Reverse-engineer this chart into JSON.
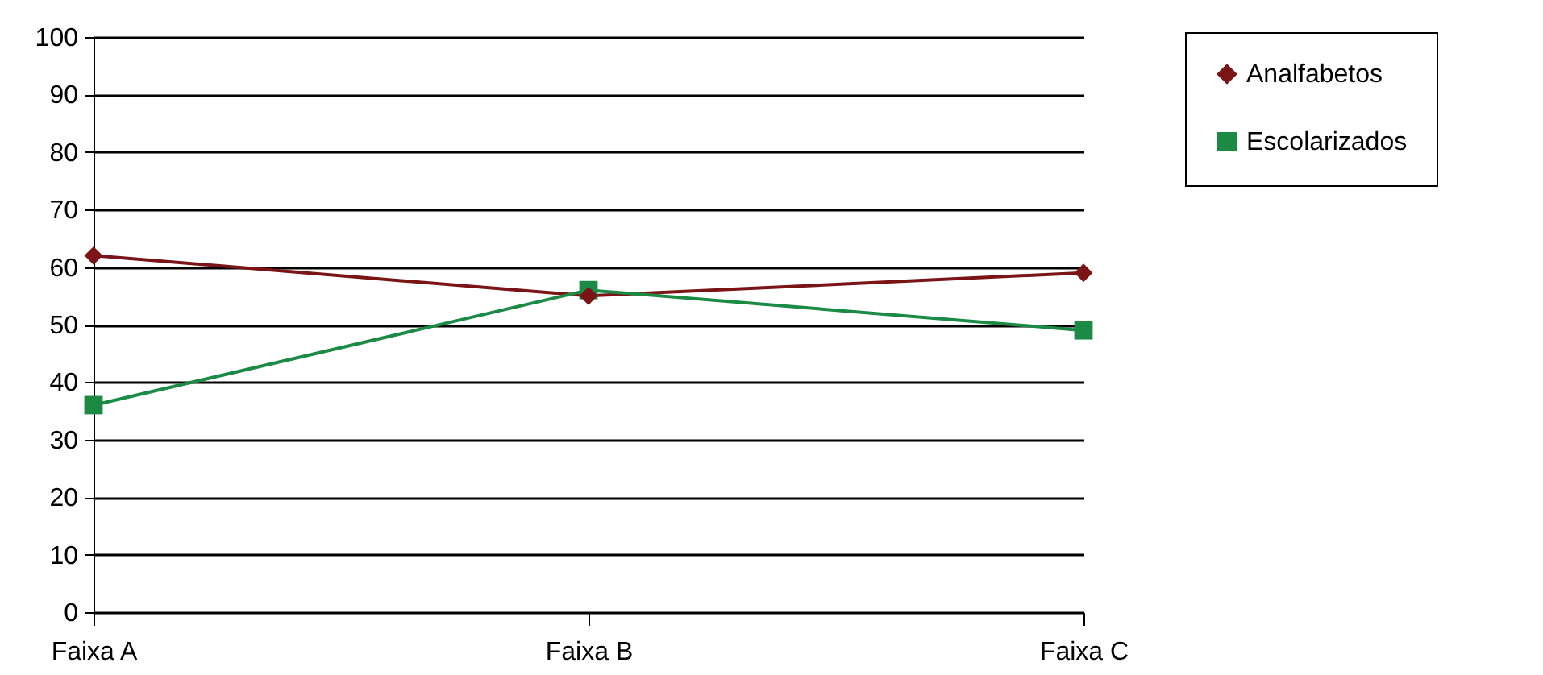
{
  "chart_data": {
    "type": "line",
    "categories": [
      "Faixa A",
      "Faixa B",
      "Faixa C"
    ],
    "series": [
      {
        "name": "Analfabetos",
        "color": "#7b1416",
        "marker": "diamond",
        "values": [
          62,
          55,
          59
        ]
      },
      {
        "name": "Escolarizados",
        "color": "#1a8a45",
        "marker": "square",
        "values": [
          36,
          56,
          49
        ]
      }
    ],
    "ylim": [
      0,
      100
    ],
    "yticks": [
      0,
      10,
      20,
      30,
      40,
      50,
      60,
      70,
      80,
      90,
      100
    ],
    "grid": "y",
    "legend": "top right"
  }
}
